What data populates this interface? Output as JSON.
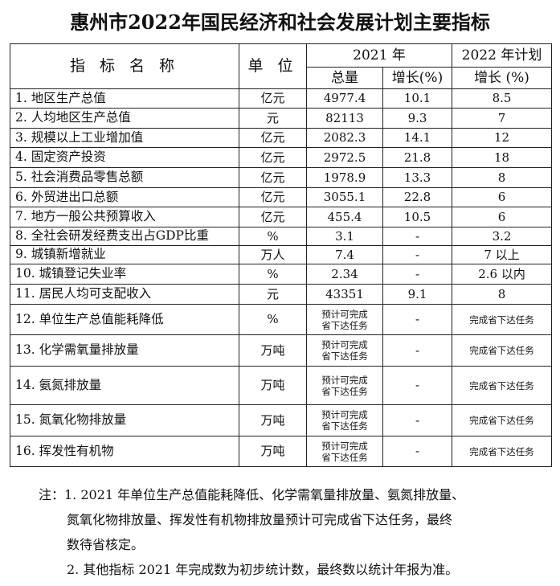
{
  "title": "惠州市2022年国民经济和社会发展计划主要指标",
  "header": {
    "name": "指 标 名 称",
    "unit": "单 位",
    "year2021": "2021 年",
    "plan2022": "2022 年计划",
    "total": "总量",
    "growth2021": "增长(%)",
    "growth2022": "增长 (%)"
  },
  "rows": [
    {
      "name": "1. 地区生产总值",
      "unit": "亿元",
      "total": "4977.4",
      "growth": "10.1",
      "plan": "8.5"
    },
    {
      "name": "2. 人均地区生产总值",
      "unit": "元",
      "total": "82113",
      "growth": "9.3",
      "plan": "7"
    },
    {
      "name": "3. 规模以上工业增加值",
      "unit": "亿元",
      "total": "2082.3",
      "growth": "14.1",
      "plan": "12"
    },
    {
      "name": "4. 固定资产投资",
      "unit": "亿元",
      "total": "2972.5",
      "growth": "21.8",
      "plan": "18"
    },
    {
      "name": "5. 社会消费品零售总额",
      "unit": "亿元",
      "total": "1978.9",
      "growth": "13.3",
      "plan": "8"
    },
    {
      "name": "6. 外贸进出口总额",
      "unit": "亿元",
      "total": "3055.1",
      "growth": "22.8",
      "plan": "6"
    },
    {
      "name": "7. 地方一般公共预算收入",
      "unit": "亿元",
      "total": "455.4",
      "growth": "10.5",
      "plan": "6"
    },
    {
      "name": "8. 全社会研发经费支出占GDP比重",
      "unit": "%",
      "total": "3.1",
      "growth": "-",
      "plan": "3.2"
    },
    {
      "name": "9. 城镇新增就业",
      "unit": "万人",
      "total": "7.4",
      "growth": "-",
      "plan": "7 以上"
    },
    {
      "name": "10. 城镇登记失业率",
      "unit": "%",
      "total": "2.34",
      "growth": "-",
      "plan": "2.6 以内"
    },
    {
      "name": "11. 居民人均可支配收入",
      "unit": "元",
      "total": "43351",
      "growth": "9.1",
      "plan": "8"
    },
    {
      "name": "12. 单位生产总值能耗降低",
      "unit": "%",
      "total": "预计可完成\n省下达任务",
      "growth": "-",
      "plan": "完成省下达任务"
    },
    {
      "name": "13. 化学需氧量排放量",
      "unit": "万吨",
      "total": "预计可完成\n省下达任务",
      "growth": "-",
      "plan": "完成省下达任务"
    },
    {
      "name": "14. 氨氮排放量",
      "unit": "万吨",
      "total": "预计可完成\n省下达任务",
      "growth": "-",
      "plan": "完成省下达任务"
    },
    {
      "name": "15. 氮氧化物排放量",
      "unit": "万吨",
      "total": "预计可完成\n省下达任务",
      "growth": "-",
      "plan": "完成省下达任务"
    },
    {
      "name": "16. 挥发性有机物",
      "unit": "万吨",
      "total": "预计可完成\n省下达任务",
      "growth": "-",
      "plan": "完成省下达任务"
    }
  ],
  "notes": {
    "line1": "注：1. 2021 年单位生产总值能耗降低、化学需氧量排放量、氨氮排放量、",
    "line2": "氮氧化物排放量、挥发性有机物排放量预计可完成省下达任务，最终",
    "line3": "数待省核定。",
    "line4": "2. 其他指标 2021 年完成数为初步统计数，最终数以统计年报为准。"
  }
}
